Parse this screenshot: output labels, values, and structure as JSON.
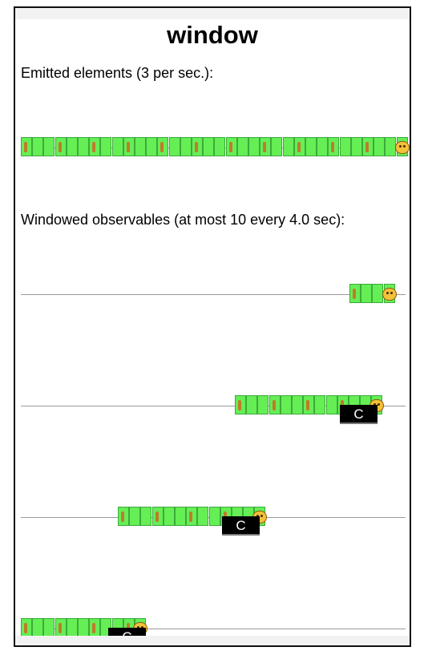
{
  "page": {
    "title": "window"
  },
  "emitted": {
    "label": "Emitted elements (3 per sec.):"
  },
  "windowed": {
    "label": "Windowed observables (at most 10 every 4.0 sec):"
  },
  "marble": {
    "item_icon": "food-item-icon",
    "end_icon": "hamster-face-icon",
    "completed_label": "C",
    "colors": {
      "cell": "#66ee55",
      "cell_border": "#3caa3c",
      "axis": "#9a9a9a",
      "complete": "#000000"
    }
  },
  "timelines": [
    {
      "name": "emitted",
      "items": 34,
      "completed": false
    },
    {
      "name": "window-1",
      "items": 4,
      "completed": false
    },
    {
      "name": "window-2",
      "items": 10,
      "completed": true
    },
    {
      "name": "window-3",
      "items": 10,
      "completed": true
    },
    {
      "name": "window-4",
      "items": 8,
      "completed": true
    }
  ]
}
